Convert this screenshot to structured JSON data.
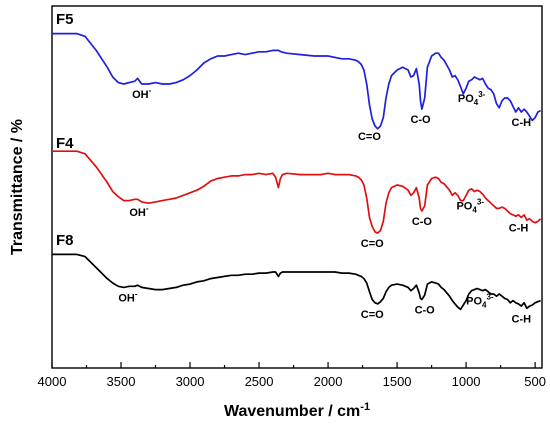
{
  "chart_data": {
    "type": "line",
    "xlabel": "Wavenumber / cm",
    "xlabel_sup": "-1",
    "ylabel": "Transmittance / %",
    "xlim": [
      4000,
      450
    ],
    "x_reversed": true,
    "xticks": [
      "4000",
      "3500",
      "3000",
      "2500",
      "2000",
      "1500",
      "1000",
      "500"
    ],
    "xtick_values": [
      4000,
      3500,
      3000,
      2500,
      2000,
      1500,
      1000,
      500
    ],
    "ylim": [
      0,
      100
    ],
    "y_ticks_shown": false,
    "grid": false,
    "legend": "none",
    "series": [
      {
        "name": "F5",
        "color": "#1f1fe0",
        "x": [
          4000,
          3820,
          3760,
          3720,
          3680,
          3640,
          3600,
          3560,
          3520,
          3480,
          3440,
          3400,
          3380,
          3350,
          3300,
          3250,
          3200,
          3150,
          3100,
          3050,
          3000,
          2950,
          2900,
          2850,
          2800,
          2750,
          2700,
          2650,
          2600,
          2550,
          2500,
          2450,
          2400,
          2360,
          2340,
          2300,
          2200,
          2100,
          2050,
          2000,
          1950,
          1900,
          1850,
          1800,
          1780,
          1760,
          1740,
          1720,
          1700,
          1680,
          1660,
          1640,
          1630,
          1620,
          1600,
          1580,
          1560,
          1540,
          1500,
          1460,
          1420,
          1400,
          1380,
          1360,
          1340,
          1330,
          1320,
          1300,
          1280,
          1250,
          1220,
          1200,
          1180,
          1160,
          1120,
          1100,
          1080,
          1060,
          1040,
          1020,
          1000,
          980,
          960,
          940,
          920,
          900,
          880,
          860,
          840,
          820,
          800,
          780,
          760,
          740,
          720,
          700,
          680,
          660,
          640,
          620,
          600,
          580,
          560,
          540,
          520,
          500,
          480,
          460
        ],
        "values": [
          96,
          96,
          94,
          89,
          84,
          78,
          72,
          65,
          61,
          60,
          61,
          62,
          64,
          60,
          60,
          61,
          60,
          60,
          61,
          63,
          66,
          70,
          75,
          78,
          80,
          80,
          81,
          82,
          81,
          82,
          83,
          83,
          84,
          84,
          83,
          82,
          81,
          80,
          80,
          80,
          79,
          78,
          78,
          77,
          76,
          74,
          70,
          60,
          45,
          35,
          30,
          28,
          29,
          30,
          36,
          50,
          60,
          66,
          70,
          72,
          70,
          65,
          66,
          71,
          60,
          48,
          42,
          50,
          72,
          80,
          82,
          82,
          79,
          77,
          70,
          65,
          66,
          63,
          58,
          53,
          57,
          62,
          63,
          65,
          64,
          63,
          64,
          60,
          57,
          56,
          53,
          46,
          43,
          48,
          50,
          50,
          48,
          44,
          40,
          43,
          40,
          42,
          40,
          37,
          34,
          36,
          40,
          41
        ]
      },
      {
        "name": "F4",
        "color": "#e01010",
        "x": [
          4000,
          3820,
          3760,
          3720,
          3680,
          3640,
          3600,
          3560,
          3520,
          3480,
          3440,
          3400,
          3380,
          3350,
          3300,
          3250,
          3200,
          3150,
          3100,
          3050,
          3000,
          2950,
          2900,
          2850,
          2800,
          2750,
          2700,
          2650,
          2600,
          2550,
          2500,
          2450,
          2400,
          2380,
          2360,
          2345,
          2330,
          2300,
          2200,
          2100,
          2050,
          2000,
          1950,
          1900,
          1850,
          1800,
          1780,
          1760,
          1740,
          1720,
          1700,
          1680,
          1660,
          1640,
          1630,
          1620,
          1600,
          1580,
          1560,
          1540,
          1500,
          1460,
          1420,
          1400,
          1380,
          1360,
          1340,
          1330,
          1320,
          1300,
          1280,
          1250,
          1220,
          1200,
          1180,
          1160,
          1120,
          1100,
          1080,
          1060,
          1040,
          1020,
          1000,
          980,
          960,
          940,
          920,
          900,
          880,
          860,
          840,
          820,
          800,
          780,
          760,
          740,
          720,
          700,
          680,
          660,
          640,
          620,
          600,
          580,
          560,
          540,
          520,
          500,
          480,
          460
        ],
        "values": [
          96,
          96,
          94,
          89,
          84,
          78,
          72,
          65,
          61,
          58,
          58,
          59,
          59,
          57,
          56,
          57,
          58,
          59,
          60,
          62,
          64,
          66,
          69,
          73,
          75,
          76,
          77,
          77,
          78,
          78,
          79,
          78,
          79,
          76,
          68,
          75,
          78,
          79,
          78,
          78,
          78,
          79,
          78,
          78,
          78,
          77,
          76,
          74,
          70,
          60,
          45,
          38,
          34,
          33,
          34,
          35,
          42,
          56,
          64,
          68,
          70,
          69,
          66,
          62,
          64,
          68,
          60,
          52,
          50,
          54,
          70,
          75,
          76,
          75,
          72,
          71,
          66,
          62,
          64,
          62,
          58,
          58,
          62,
          66,
          67,
          65,
          66,
          65,
          63,
          60,
          58,
          56,
          54,
          52,
          52,
          53,
          52,
          50,
          48,
          47,
          46,
          47,
          45,
          47,
          43,
          44,
          42,
          41,
          42,
          44
        ]
      },
      {
        "name": "F8",
        "color": "#000000",
        "x": [
          4000,
          3820,
          3760,
          3720,
          3680,
          3640,
          3600,
          3560,
          3520,
          3480,
          3440,
          3400,
          3380,
          3350,
          3300,
          3250,
          3200,
          3150,
          3100,
          3050,
          3000,
          2950,
          2900,
          2850,
          2800,
          2750,
          2700,
          2650,
          2600,
          2550,
          2500,
          2450,
          2400,
          2380,
          2360,
          2345,
          2330,
          2300,
          2200,
          2100,
          2050,
          2000,
          1950,
          1900,
          1850,
          1800,
          1780,
          1760,
          1740,
          1720,
          1700,
          1680,
          1660,
          1640,
          1630,
          1620,
          1600,
          1580,
          1560,
          1540,
          1500,
          1460,
          1420,
          1400,
          1380,
          1360,
          1340,
          1330,
          1320,
          1300,
          1280,
          1250,
          1220,
          1200,
          1180,
          1160,
          1120,
          1100,
          1080,
          1060,
          1040,
          1020,
          1000,
          980,
          960,
          940,
          920,
          900,
          880,
          860,
          840,
          820,
          800,
          780,
          760,
          740,
          720,
          700,
          680,
          660,
          640,
          620,
          600,
          580,
          560,
          540,
          520,
          500,
          480,
          460
        ],
        "values": [
          96,
          96,
          94,
          89,
          84,
          79,
          74,
          70,
          67,
          66,
          67,
          67,
          68,
          66,
          65,
          64,
          64,
          65,
          66,
          68,
          69,
          71,
          72,
          74,
          75,
          76,
          77,
          77,
          78,
          78,
          79,
          79,
          80,
          80,
          76,
          79,
          80,
          80,
          80,
          80,
          80,
          80,
          80,
          79,
          79,
          78,
          77,
          76,
          74,
          70,
          62,
          55,
          52,
          51,
          52,
          53,
          56,
          62,
          66,
          68,
          69,
          68,
          66,
          63,
          65,
          68,
          61,
          56,
          55,
          59,
          69,
          71,
          70,
          69,
          66,
          64,
          58,
          54,
          51,
          48,
          46,
          50,
          54,
          60,
          63,
          64,
          65,
          64,
          63,
          64,
          62,
          60,
          60,
          58,
          60,
          58,
          56,
          55,
          52,
          54,
          52,
          51,
          49,
          52,
          47,
          49,
          50,
          52,
          53,
          54
        ]
      }
    ],
    "annotations": [
      {
        "series": "F5",
        "text": "OH",
        "sup": "-",
        "x": 3350
      },
      {
        "series": "F5",
        "text": "C=O",
        "x": 1700
      },
      {
        "series": "F5",
        "text": "C-O",
        "x": 1330
      },
      {
        "series": "F5",
        "text": "PO",
        "sub": "4",
        "sup": "3-",
        "x": 960
      },
      {
        "series": "F5",
        "text": "C-H",
        "x": 600
      },
      {
        "series": "F4",
        "text": "OH",
        "sup": "-",
        "x": 3370
      },
      {
        "series": "F4",
        "text": "C=O",
        "x": 1680
      },
      {
        "series": "F4",
        "text": "C-O",
        "x": 1320
      },
      {
        "series": "F4",
        "text": "PO",
        "sub": "4",
        "sup": "3-",
        "x": 970
      },
      {
        "series": "F4",
        "text": "C-H",
        "x": 620
      },
      {
        "series": "F8",
        "text": "OH",
        "sup": "-",
        "x": 3450
      },
      {
        "series": "F8",
        "text": "C=O",
        "x": 1680
      },
      {
        "series": "F8",
        "text": "C-O",
        "x": 1300
      },
      {
        "series": "F8",
        "text": "PO",
        "sub": "4",
        "sup": "3-",
        "x": 900
      },
      {
        "series": "F8",
        "text": "C-H",
        "x": 600
      }
    ]
  }
}
